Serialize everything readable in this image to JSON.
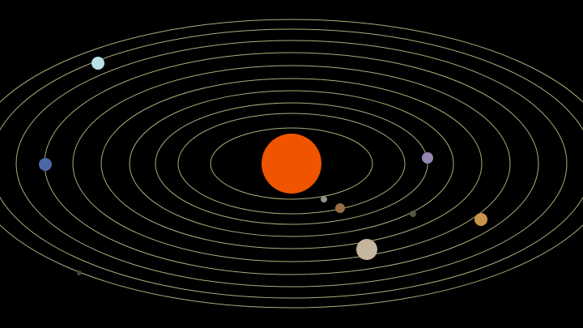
{
  "diagram": {
    "background_color": "#000000",
    "orbit_color": "#c9c98f",
    "sun": {
      "color": "#f05400"
    },
    "planets": [
      {
        "name": "planet-1",
        "color": "#9a9388"
      },
      {
        "name": "planet-2",
        "color": "#9a6e45"
      },
      {
        "name": "planet-3",
        "color": "#515a3c"
      },
      {
        "name": "planet-4",
        "color": "#9587b3"
      },
      {
        "name": "planet-5",
        "color": "#c4b59e"
      },
      {
        "name": "planet-6",
        "color": "#c8944a"
      },
      {
        "name": "planet-7",
        "color": "#b8e0e5"
      },
      {
        "name": "planet-8",
        "color": "#4c66a6"
      },
      {
        "name": "planet-9",
        "color": "#4a4530"
      }
    ]
  }
}
